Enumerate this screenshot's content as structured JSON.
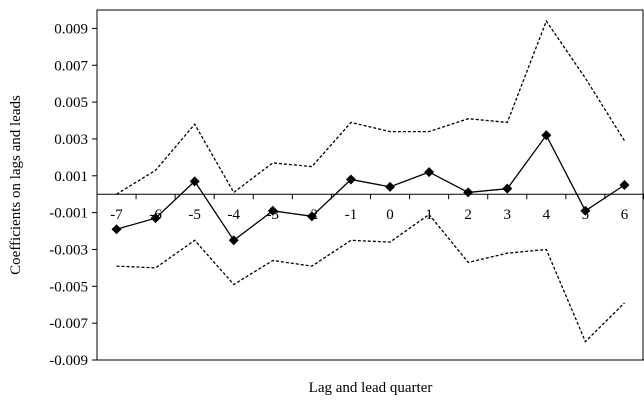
{
  "chart_data": {
    "type": "line",
    "title": "",
    "xlabel": "Lag and lead quarter",
    "ylabel": "Coefficients on lags and leads",
    "ylim": [
      -0.009,
      0.01
    ],
    "yticks": [
      0.009,
      0.007,
      0.005,
      0.003,
      0.001,
      -0.001,
      -0.003,
      -0.005,
      -0.007,
      -0.009
    ],
    "ytick_labels": [
      "0.009",
      "0.007",
      "0.005",
      "0.003",
      "0.001",
      "-0.001",
      "-0.003",
      "-0.005",
      "-0.007",
      "-0.009"
    ],
    "categories": [
      "-7",
      "-6",
      "-5",
      "-4",
      "-3",
      "-2",
      "-1",
      "0",
      "1",
      "2",
      "3",
      "4",
      "5",
      "6"
    ],
    "x_axis_crosses_at": 0,
    "grid": false,
    "legend": "none",
    "series": [
      {
        "style": "solid-diamond",
        "color": "#000000",
        "values": [
          -0.0019,
          -0.0013,
          0.0007,
          -0.0025,
          -0.0009,
          -0.0012,
          0.0008,
          0.0004,
          0.0012,
          0.0001,
          0.0003,
          0.0032,
          -0.0009,
          0.0005
        ]
      },
      {
        "style": "dotted",
        "color": "#000000",
        "values": [
          0.0,
          0.0013,
          0.0038,
          0.0001,
          0.0017,
          0.0015,
          0.0039,
          0.0034,
          0.0034,
          0.0041,
          0.0039,
          0.0094,
          0.0063,
          0.0029
        ]
      },
      {
        "style": "dotted",
        "color": "#000000",
        "values": [
          -0.0039,
          -0.004,
          -0.0025,
          -0.0049,
          -0.0036,
          -0.0039,
          -0.0025,
          -0.0026,
          -0.0011,
          -0.0037,
          -0.0032,
          -0.003,
          -0.008,
          -0.0059
        ]
      }
    ]
  }
}
